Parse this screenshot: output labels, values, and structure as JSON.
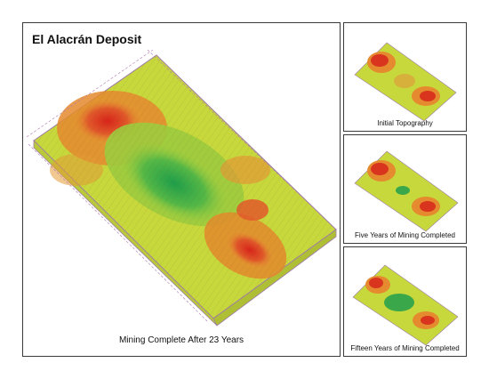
{
  "main": {
    "title": "El Alacrán Deposit",
    "caption": "Mining Complete After 23 Years"
  },
  "thumbnails": [
    {
      "caption": "Initial Topography"
    },
    {
      "caption": "Five Years of Mining Completed"
    },
    {
      "caption": "Fifteen Years of Mining Completed"
    }
  ],
  "colors": {
    "border": "#3a3a3a",
    "terrain_base": "#c9dc3a",
    "high": "#cc3320",
    "mid": "#e08a2a",
    "pit": "#2fa84a",
    "grid": "#b07ab0"
  }
}
